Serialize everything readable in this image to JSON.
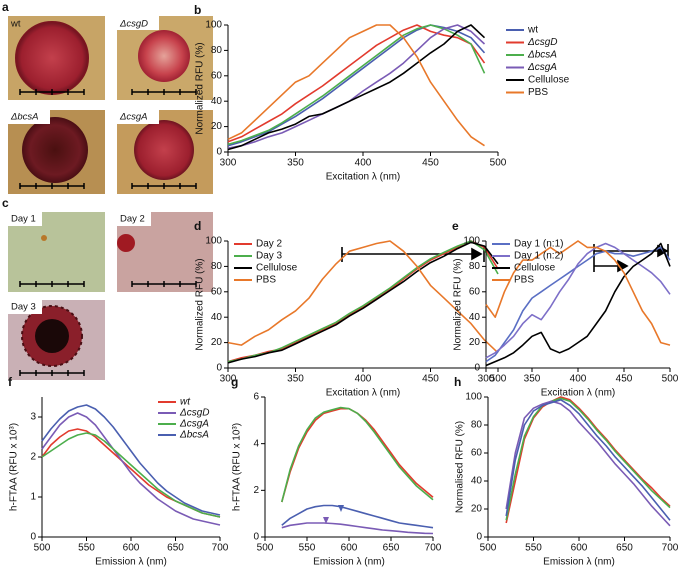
{
  "panels": {
    "a": {
      "label": "a",
      "images": [
        "wt",
        "ΔcsgD",
        "ΔbcsA",
        "ΔcsgA"
      ]
    },
    "c": {
      "label": "c",
      "images": [
        "Day 1",
        "Day 2",
        "Day 3"
      ]
    }
  },
  "chart_data": [
    {
      "type": "line",
      "panel": "b",
      "x_label": "Excitation λ (nm)",
      "y_label": "Normalized RFU (%)",
      "x": [
        300,
        310,
        320,
        330,
        340,
        350,
        360,
        370,
        380,
        390,
        400,
        410,
        420,
        430,
        440,
        450,
        460,
        470,
        480,
        490,
        500
      ],
      "xlim": [
        300,
        500
      ],
      "xticks": [
        300,
        350,
        400,
        450,
        500
      ],
      "ylim": [
        0,
        100
      ],
      "yticks": [
        0,
        20,
        40,
        60,
        80,
        100
      ],
      "legend": "right",
      "series": [
        {
          "name": "wt",
          "color": "#4a5fb0",
          "values": [
            5,
            8,
            12,
            16,
            22,
            28,
            35,
            42,
            50,
            58,
            66,
            74,
            82,
            90,
            96,
            100,
            98,
            95,
            90,
            78,
            null
          ]
        },
        {
          "name": "ΔcsgD",
          "color": "#e23b2e",
          "values": [
            8,
            12,
            18,
            24,
            30,
            38,
            45,
            52,
            60,
            68,
            76,
            84,
            90,
            96,
            100,
            95,
            92,
            90,
            85,
            70,
            null
          ]
        },
        {
          "name": "ΔbcsA",
          "color": "#4cae4c",
          "values": [
            6,
            9,
            13,
            17,
            23,
            30,
            37,
            44,
            52,
            60,
            68,
            76,
            84,
            92,
            97,
            100,
            97,
            92,
            85,
            62,
            null
          ]
        },
        {
          "name": "ΔcsgA",
          "color": "#7a5bb5",
          "values": [
            3,
            5,
            8,
            12,
            15,
            20,
            25,
            30,
            35,
            40,
            48,
            55,
            62,
            70,
            80,
            90,
            97,
            100,
            95,
            85,
            null
          ]
        },
        {
          "name": "Cellulose",
          "color": "#000000",
          "values": [
            2,
            5,
            10,
            15,
            18,
            22,
            28,
            30,
            35,
            40,
            45,
            50,
            55,
            62,
            70,
            78,
            85,
            95,
            100,
            90,
            null
          ]
        },
        {
          "name": "PBS",
          "color": "#e8782a",
          "values": [
            10,
            15,
            25,
            35,
            45,
            55,
            60,
            70,
            80,
            90,
            95,
            100,
            100,
            90,
            75,
            55,
            40,
            25,
            12,
            5,
            null
          ]
        }
      ]
    },
    {
      "type": "line",
      "panel": "d",
      "x_label": "Excitation λ (nm)",
      "y_label": "Normalized RFU (%)",
      "x": [
        300,
        310,
        320,
        330,
        340,
        350,
        360,
        370,
        380,
        390,
        400,
        410,
        420,
        430,
        440,
        450,
        460,
        470,
        480,
        490,
        500
      ],
      "xlim": [
        300,
        500
      ],
      "xticks": [
        300,
        350,
        400,
        450,
        500
      ],
      "ylim": [
        0,
        100
      ],
      "yticks": [
        0,
        20,
        40,
        60,
        80,
        100
      ],
      "legend": "upper left",
      "series": [
        {
          "name": "Day 2",
          "color": "#e23b2e",
          "values": [
            5,
            8,
            10,
            13,
            15,
            20,
            25,
            30,
            35,
            42,
            48,
            55,
            62,
            70,
            78,
            85,
            90,
            95,
            100,
            95,
            78
          ]
        },
        {
          "name": "Day 3",
          "color": "#4cae4c",
          "values": [
            5,
            7,
            10,
            12,
            16,
            21,
            26,
            31,
            36,
            43,
            49,
            56,
            63,
            71,
            79,
            86,
            91,
            96,
            100,
            93,
            74
          ]
        },
        {
          "name": "Cellulose",
          "color": "#000000",
          "values": [
            4,
            7,
            9,
            12,
            14,
            19,
            24,
            29,
            34,
            41,
            47,
            54,
            61,
            68,
            76,
            83,
            88,
            94,
            99,
            96,
            82
          ]
        },
        {
          "name": "PBS",
          "color": "#e8782a",
          "values": [
            20,
            18,
            25,
            30,
            38,
            45,
            55,
            70,
            82,
            92,
            95,
            98,
            100,
            92,
            80,
            65,
            55,
            45,
            35,
            22,
            12
          ]
        }
      ]
    },
    {
      "type": "line",
      "panel": "e",
      "x_label": "Excitation λ (nm)",
      "y_label": "Normalized RFU (%)",
      "x": [
        300,
        310,
        320,
        330,
        340,
        350,
        360,
        370,
        380,
        390,
        400,
        410,
        420,
        430,
        440,
        450,
        460,
        470,
        480,
        490,
        500
      ],
      "xlim": [
        300,
        500
      ],
      "xticks": [
        300,
        350,
        400,
        450,
        500
      ],
      "ylim": [
        0,
        100
      ],
      "yticks": [
        0,
        20,
        40,
        60,
        80,
        100
      ],
      "legend": "upper left",
      "series": [
        {
          "name": "Day 1 (n:1)",
          "color": "#5a6fc4",
          "values": [
            5,
            10,
            20,
            30,
            45,
            55,
            60,
            65,
            70,
            75,
            80,
            85,
            90,
            92,
            90,
            90,
            88,
            90,
            92,
            95,
            85
          ]
        },
        {
          "name": "Day 1 (n:2)",
          "color": "#7d6fc8",
          "values": [
            8,
            12,
            18,
            25,
            35,
            42,
            38,
            48,
            60,
            70,
            82,
            90,
            95,
            98,
            95,
            90,
            85,
            80,
            75,
            68,
            58
          ]
        },
        {
          "name": "Cellulose",
          "color": "#000000",
          "values": [
            2,
            5,
            8,
            12,
            18,
            25,
            28,
            15,
            12,
            15,
            20,
            25,
            35,
            45,
            60,
            72,
            80,
            85,
            90,
            98,
            80
          ]
        },
        {
          "name": "PBS",
          "color": "#e8782a",
          "values": [
            50,
            40,
            60,
            75,
            85,
            85,
            90,
            95,
            90,
            95,
            100,
            95,
            95,
            92,
            85,
            75,
            60,
            45,
            35,
            20,
            18
          ]
        }
      ]
    },
    {
      "type": "line",
      "panel": "f",
      "x_label": "Emission λ (nm)",
      "y_label": "h-FTAA (RFU x 10³)",
      "x": [
        500,
        510,
        520,
        530,
        540,
        550,
        560,
        570,
        580,
        590,
        600,
        610,
        620,
        630,
        640,
        650,
        660,
        670,
        680,
        690,
        700
      ],
      "xlim": [
        500,
        700
      ],
      "xticks": [
        500,
        550,
        600,
        650,
        700
      ],
      "ylim": [
        0,
        3.5
      ],
      "yticks": [
        0,
        1,
        2,
        3
      ],
      "legend": "upper right",
      "series": [
        {
          "name": "wt",
          "color": "#e23b2e",
          "values": [
            2.0,
            2.3,
            2.5,
            2.65,
            2.7,
            2.65,
            2.5,
            2.3,
            2.1,
            1.9,
            1.7,
            1.5,
            1.3,
            1.15,
            1.0,
            0.9,
            0.8,
            0.7,
            0.6,
            0.55,
            0.5
          ]
        },
        {
          "name": "ΔcsgD",
          "color": "#7a5bb5",
          "values": [
            2.2,
            2.5,
            2.8,
            3.0,
            3.1,
            3.0,
            2.8,
            2.5,
            2.2,
            1.9,
            1.6,
            1.35,
            1.15,
            0.95,
            0.8,
            0.65,
            0.55,
            0.45,
            0.4,
            0.35,
            0.3
          ]
        },
        {
          "name": "ΔcsgA",
          "color": "#4cae4c",
          "values": [
            2.0,
            2.15,
            2.3,
            2.45,
            2.55,
            2.6,
            2.55,
            2.4,
            2.2,
            2.0,
            1.8,
            1.6,
            1.4,
            1.2,
            1.05,
            0.9,
            0.8,
            0.7,
            0.6,
            0.55,
            0.5
          ]
        },
        {
          "name": "ΔbcsA",
          "color": "#4a5fb0",
          "values": [
            2.4,
            2.7,
            2.95,
            3.15,
            3.25,
            3.3,
            3.2,
            3.0,
            2.75,
            2.45,
            2.15,
            1.85,
            1.6,
            1.35,
            1.15,
            1.0,
            0.85,
            0.75,
            0.65,
            0.6,
            0.55
          ]
        }
      ]
    },
    {
      "type": "line",
      "panel": "g",
      "x_label": "Emission λ (nm)",
      "y_label": "h-FTAA (RFU x 10³)",
      "x": [
        500,
        510,
        520,
        530,
        540,
        550,
        560,
        570,
        580,
        590,
        600,
        610,
        620,
        630,
        640,
        650,
        660,
        670,
        680,
        690,
        700
      ],
      "xlim": [
        500,
        700
      ],
      "xticks": [
        500,
        550,
        600,
        650,
        700
      ],
      "ylim": [
        0,
        6
      ],
      "yticks": [
        0,
        2,
        4,
        6
      ],
      "series": [
        {
          "color": "#e23b2e",
          "values": [
            null,
            null,
            1.5,
            2.8,
            3.8,
            4.5,
            5.0,
            5.3,
            5.4,
            5.5,
            5.5,
            5.3,
            5.0,
            4.6,
            4.1,
            3.6,
            3.1,
            2.7,
            2.3,
            2.0,
            1.7
          ]
        },
        {
          "color": "#4cae4c",
          "values": [
            null,
            null,
            1.5,
            2.9,
            3.9,
            4.6,
            5.1,
            5.35,
            5.45,
            5.55,
            5.5,
            5.3,
            4.95,
            4.5,
            4.0,
            3.5,
            3.0,
            2.6,
            2.2,
            1.9,
            1.6
          ]
        },
        {
          "color": "#7a5bb5",
          "values": [
            null,
            null,
            0.4,
            0.5,
            0.55,
            0.6,
            0.6,
            0.6,
            0.58,
            0.55,
            0.5,
            0.45,
            0.4,
            0.35,
            0.3,
            0.27,
            0.24,
            0.2,
            0.18,
            0.16,
            0.15
          ]
        },
        {
          "color": "#4a5fb0",
          "values": [
            null,
            null,
            0.5,
            0.8,
            1.0,
            1.2,
            1.3,
            1.35,
            1.35,
            1.3,
            1.2,
            1.1,
            1.0,
            0.9,
            0.8,
            0.7,
            0.6,
            0.55,
            0.5,
            0.45,
            0.4
          ]
        }
      ]
    },
    {
      "type": "line",
      "panel": "h",
      "x_label": "Emission λ (nm)",
      "y_label": "Normalised RFU (%)",
      "x": [
        500,
        510,
        520,
        530,
        540,
        550,
        560,
        570,
        580,
        590,
        600,
        610,
        620,
        630,
        640,
        650,
        660,
        670,
        680,
        690,
        700
      ],
      "xlim": [
        500,
        700
      ],
      "xticks": [
        500,
        550,
        600,
        650,
        700
      ],
      "ylim": [
        0,
        100
      ],
      "yticks": [
        0,
        20,
        40,
        60,
        80,
        100
      ],
      "series": [
        {
          "color": "#e23b2e",
          "values": [
            null,
            null,
            10,
            40,
            70,
            85,
            93,
            97,
            100,
            98,
            92,
            85,
            77,
            70,
            62,
            55,
            48,
            41,
            35,
            28,
            22
          ]
        },
        {
          "color": "#4cae4c",
          "values": [
            null,
            null,
            12,
            45,
            72,
            86,
            94,
            97,
            99,
            97,
            91,
            84,
            76,
            69,
            61,
            54,
            47,
            40,
            33,
            27,
            21
          ]
        },
        {
          "color": "#7a5bb5",
          "values": [
            null,
            null,
            20,
            60,
            85,
            92,
            95,
            97,
            95,
            90,
            82,
            75,
            68,
            60,
            52,
            45,
            38,
            30,
            22,
            15,
            8
          ]
        },
        {
          "color": "#4a5fb0",
          "values": [
            null,
            null,
            15,
            55,
            80,
            90,
            94,
            96,
            98,
            94,
            88,
            80,
            72,
            65,
            57,
            50,
            43,
            36,
            28,
            20,
            12
          ]
        }
      ]
    }
  ]
}
